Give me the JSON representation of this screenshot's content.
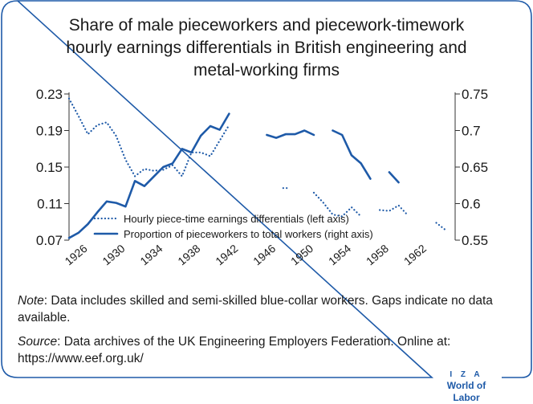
{
  "title_lines": [
    "Share of male pieceworkers and piecework-timework",
    "hourly earnings differentials in British engineering and",
    "metal-working firms"
  ],
  "note": {
    "label": "Note",
    "text": ": Data includes skilled and semi-skilled blue-collar workers. Gaps indicate no data available."
  },
  "source": {
    "label": "Source",
    "text": ": Data archives of the UK Engineering Employers Federation. Online at: https://www.eef.org.uk/"
  },
  "branding": {
    "top": "I Z A",
    "bottom": "World of Labor"
  },
  "colors": {
    "series": "#1e5aa8",
    "frame": "#1e5aa8",
    "text": "#1a1a1a"
  },
  "chart_data": {
    "type": "line",
    "title": "Share of male pieceworkers and piecework-timework hourly earnings differentials in British engineering and metal-working firms",
    "x_ticks": [
      "1926",
      "1930",
      "1934",
      "1938",
      "1942",
      "1946",
      "1950",
      "1954",
      "1958",
      "1962"
    ],
    "xlim": [
      1925,
      1966
    ],
    "left_axis": {
      "ticks": [
        "0.07",
        "0.11",
        "0.15",
        "0.19",
        "0.23"
      ],
      "ylim": [
        0.07,
        0.23
      ]
    },
    "right_axis": {
      "ticks": [
        "0.55",
        "0.6",
        "0.65",
        "0.7",
        "0.75"
      ],
      "ylim": [
        0.55,
        0.75
      ]
    },
    "legend_position": "bottom-center",
    "grid": false,
    "series": [
      {
        "name": "Hourly piece-time earnings differentials (left axis)",
        "axis": "left",
        "style": "dotted",
        "segments": [
          [
            [
              1925,
              0.225
            ],
            [
              1926,
              0.206
            ],
            [
              1927,
              0.186
            ],
            [
              1928,
              0.196
            ],
            [
              1929,
              0.199
            ],
            [
              1930,
              0.184
            ],
            [
              1931,
              0.158
            ],
            [
              1932,
              0.14
            ],
            [
              1933,
              0.148
            ],
            [
              1934,
              0.146
            ],
            [
              1935,
              0.147
            ],
            [
              1936,
              0.152
            ],
            [
              1937,
              0.14
            ],
            [
              1938,
              0.166
            ],
            [
              1939,
              0.166
            ],
            [
              1940,
              0.162
            ],
            [
              1941,
              0.179
            ],
            [
              1942,
              0.196
            ]
          ],
          [
            [
              1948,
              0.127
            ]
          ],
          [
            [
              1951,
              0.122
            ],
            [
              1952,
              0.111
            ],
            [
              1953,
              0.098
            ],
            [
              1954,
              0.096
            ],
            [
              1955,
              0.106
            ],
            [
              1956,
              0.096
            ]
          ],
          [
            [
              1958,
              0.103
            ],
            [
              1959,
              0.102
            ],
            [
              1960,
              0.108
            ],
            [
              1961,
              0.097
            ]
          ],
          [
            [
              1964,
              0.089
            ],
            [
              1965,
              0.081
            ]
          ]
        ]
      },
      {
        "name": "Proportion of pieceworkers to total workers (right axis)",
        "axis": "right",
        "style": "solid",
        "segments": [
          [
            [
              1925,
              0.553
            ],
            [
              1926,
              0.56
            ],
            [
              1927,
              0.572
            ],
            [
              1928,
              0.588
            ],
            [
              1929,
              0.603
            ],
            [
              1930,
              0.601
            ],
            [
              1931,
              0.596
            ],
            [
              1932,
              0.631
            ],
            [
              1933,
              0.624
            ],
            [
              1934,
              0.637
            ],
            [
              1935,
              0.65
            ],
            [
              1936,
              0.655
            ],
            [
              1937,
              0.675
            ],
            [
              1938,
              0.67
            ],
            [
              1939,
              0.693
            ],
            [
              1940,
              0.706
            ],
            [
              1941,
              0.701
            ],
            [
              1942,
              0.723
            ]
          ],
          [
            [
              1946,
              0.694
            ],
            [
              1947,
              0.69
            ],
            [
              1948,
              0.695
            ],
            [
              1949,
              0.695
            ],
            [
              1950,
              0.7
            ],
            [
              1951,
              0.694
            ]
          ],
          [
            [
              1953,
              0.7
            ],
            [
              1954,
              0.694
            ],
            [
              1955,
              0.666
            ],
            [
              1956,
              0.655
            ],
            [
              1957,
              0.634
            ]
          ],
          [
            [
              1959,
              0.643
            ],
            [
              1960,
              0.629
            ]
          ]
        ]
      }
    ]
  }
}
